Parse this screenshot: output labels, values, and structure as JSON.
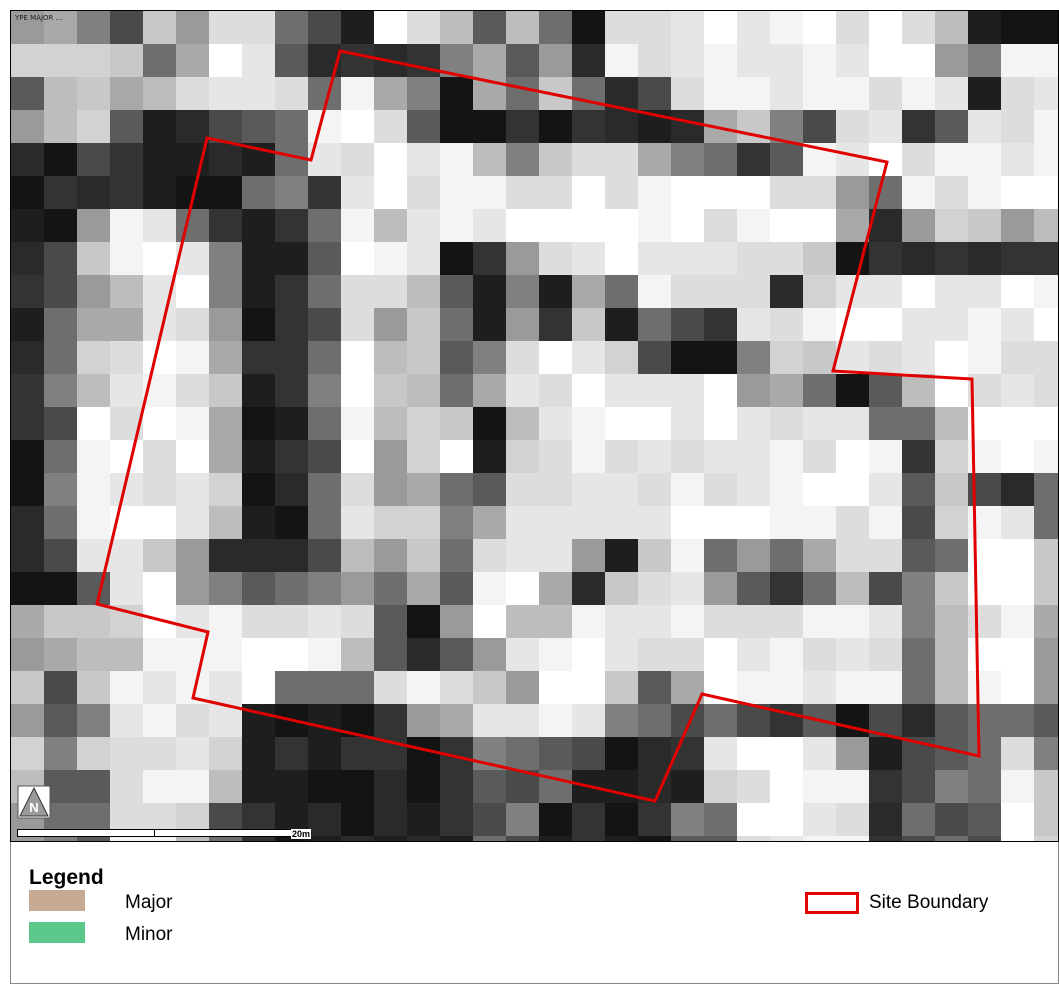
{
  "map": {
    "layer_label": "YPE\n MAJOR ...",
    "scale_label": "20m",
    "north_label": "N",
    "boundary_color": "#e00000"
  },
  "legend": {
    "title": "Legend",
    "items": [
      {
        "label": "Major",
        "color": "#c8aa92"
      },
      {
        "label": "Minor",
        "color": "#5ac88a"
      }
    ],
    "boundary": {
      "label": "Site Boundary",
      "color": "#e00000"
    }
  },
  "grid": {
    "rows": [
      "CCAWAWPBDWEACEAEFWWWWWWWWWWWWWWWWWWWWWWWWWWWWWWWWWWWWWWWWWWWWWWWWWWWWWWWWWWWWWWWWWWWWWWWWWWWWWWWWWWWWWWWW",
      "CCBWWBDWWBBDFDEBAWWWWWWWWWWWWWWWWWWWWWWWWWWWWWWWWWWWWWWWWWWWWWWWWWWWWWWWWWWWWWWWWWWWWWWWWWWWWWWWWWWWWWWWW"
    ]
  }
}
